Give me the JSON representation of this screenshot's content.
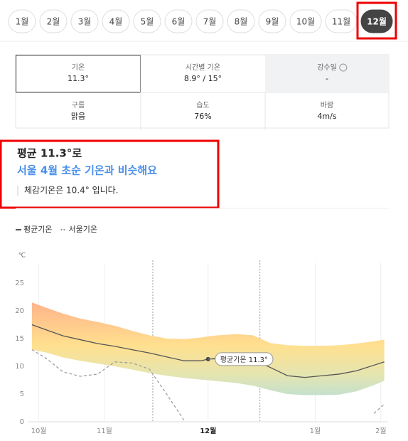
{
  "month_tabs": {
    "items": [
      "1월",
      "2월",
      "3월",
      "4월",
      "5월",
      "6월",
      "7월",
      "8월",
      "9월",
      "10월",
      "11월",
      "12월"
    ],
    "selected": 11
  },
  "stats": {
    "cells": [
      {
        "label": "기온",
        "value": "11.3°"
      },
      {
        "label": "시간별 기온",
        "value": "8.9° / 15°"
      },
      {
        "label": "강수일",
        "value": "-"
      },
      {
        "label": "구름",
        "value": "맑음"
      },
      {
        "label": "습도",
        "value": "76%"
      },
      {
        "label": "바람",
        "value": "4m/s"
      }
    ]
  },
  "summary": {
    "headline": "평균 11.3°로",
    "comparison": "서울 4월 초순 기온과 비슷해요",
    "feels_like": "체감기온은 10.4° 입니다."
  },
  "chart_data": {
    "type": "line",
    "y_label": "℃",
    "x": [
      1,
      5,
      10,
      15,
      20,
      25,
      30,
      35,
      40,
      45,
      50,
      52,
      55,
      60,
      65,
      70,
      75,
      80,
      85,
      90,
      95,
      100,
      103
    ],
    "series": [
      {
        "name": "평균기온",
        "color": "#555555",
        "dash": false,
        "values": [
          17.5,
          16.6,
          15.5,
          14.8,
          14.1,
          13.6,
          13.0,
          12.4,
          11.7,
          11.0,
          11.0,
          11.3,
          11.5,
          11.7,
          11.2,
          9.8,
          8.3,
          8.0,
          8.3,
          8.6,
          9.2,
          10.2,
          10.8
        ]
      },
      {
        "name": "서울기온",
        "color": "#999999",
        "dash": true,
        "values": [
          13.0,
          11.5,
          9.0,
          8.2,
          8.6,
          10.8,
          10.6,
          9.5,
          5.0,
          0.3,
          null,
          null,
          null,
          null,
          null,
          null,
          null,
          null,
          null,
          null,
          null,
          1.5,
          3.2
        ]
      }
    ],
    "band": {
      "upper": [
        21.5,
        20.6,
        19.5,
        18.6,
        18.0,
        17.3,
        16.4,
        15.6,
        15.0,
        14.9,
        15.2,
        15.4,
        15.6,
        15.8,
        15.6,
        14.2,
        13.8,
        13.7,
        13.7,
        13.8,
        14.1,
        14.5,
        14.8
      ],
      "lower": [
        13.0,
        12.5,
        11.6,
        11.0,
        10.5,
        10.0,
        9.4,
        8.8,
        8.3,
        7.9,
        7.6,
        7.5,
        7.3,
        7.0,
        6.5,
        5.7,
        5.0,
        4.8,
        4.8,
        4.9,
        5.5,
        6.6,
        7.4
      ]
    },
    "xlim": [
      0,
      104
    ],
    "xticks": [
      {
        "value": 3,
        "label": "10월"
      },
      {
        "value": 22,
        "label": "11월"
      },
      {
        "value": 52,
        "label": "12월"
      },
      {
        "value": 83,
        "label": "1월"
      },
      {
        "value": 102,
        "label": "2월"
      }
    ],
    "selected_range": [
      36,
      67
    ],
    "ylim": [
      0,
      25
    ],
    "yticks": [
      0,
      5,
      10,
      15,
      20,
      25
    ],
    "annotation": {
      "label": "평균기온 11.3°",
      "x": 52,
      "y": 11.3
    }
  }
}
